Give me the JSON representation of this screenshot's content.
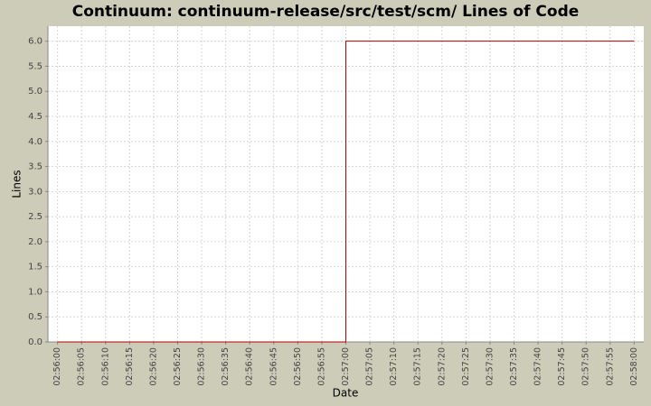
{
  "chart_data": {
    "type": "line",
    "step": true,
    "title": "Continuum: continuum-release/src/test/scm/ Lines of Code",
    "x_label": "Date",
    "y_label": "Lines",
    "x": [
      "02:56:00",
      "02:57:00",
      "02:58:00"
    ],
    "series": [
      {
        "name": "Lines",
        "color": "#b40000",
        "values": [
          0,
          6,
          6
        ]
      }
    ],
    "xlim": [
      "02:55:58",
      "02:58:02"
    ],
    "xticks": [
      "02:56:00",
      "02:56:05",
      "02:56:10",
      "02:56:15",
      "02:56:20",
      "02:56:25",
      "02:56:30",
      "02:56:35",
      "02:56:40",
      "02:56:45",
      "02:56:50",
      "02:56:55",
      "02:57:00",
      "02:57:05",
      "02:57:10",
      "02:57:15",
      "02:57:20",
      "02:57:25",
      "02:57:30",
      "02:57:35",
      "02:57:40",
      "02:57:45",
      "02:57:50",
      "02:57:55",
      "02:58:00"
    ],
    "ylim": [
      0,
      6.3
    ],
    "yticks": [
      {
        "value": 0,
        "label": "0.0"
      },
      0.5,
      {
        "value": 1,
        "label": "1.0"
      },
      1.5,
      {
        "value": 2,
        "label": "2.0"
      },
      2.5,
      {
        "value": 3,
        "label": "3.0"
      },
      3.5,
      {
        "value": 4,
        "label": "4.0"
      },
      4.5,
      {
        "value": 5,
        "label": "5.0"
      },
      5.5,
      {
        "value": 6,
        "label": "6.0"
      }
    ],
    "grid": true
  }
}
